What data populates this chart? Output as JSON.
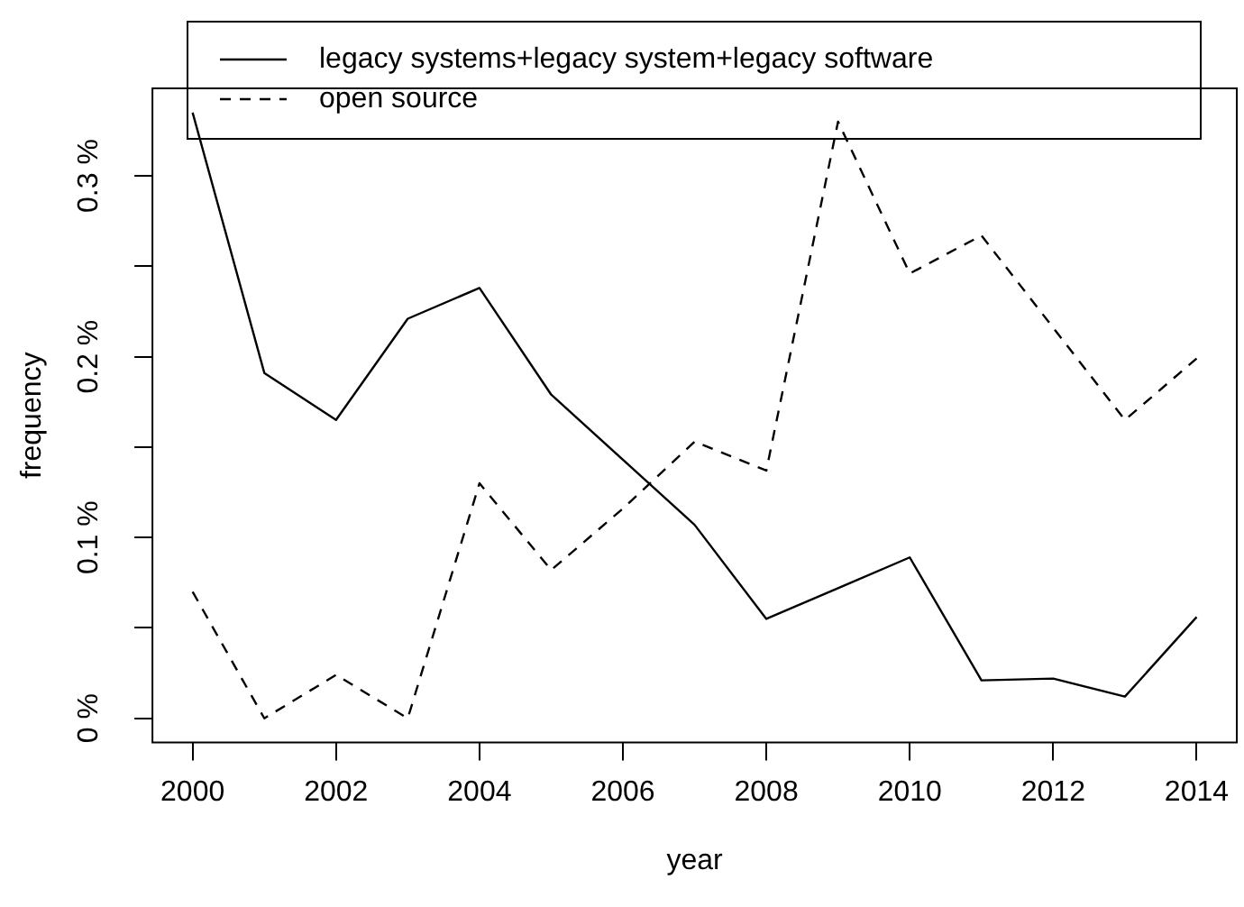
{
  "chart_data": {
    "type": "line",
    "xlabel": "year",
    "ylabel": "frequency",
    "x": [
      2000,
      2001,
      2002,
      2003,
      2004,
      2005,
      2006,
      2007,
      2008,
      2009,
      2010,
      2011,
      2012,
      2013,
      2014
    ],
    "series": [
      {
        "name": "legacy systems+legacy system+legacy software",
        "color": "#000000",
        "line_style": "solid",
        "values": [
          0.335,
          0.191,
          0.165,
          0.221,
          0.238,
          0.179,
          0.143,
          0.107,
          0.055,
          0.072,
          0.089,
          0.021,
          0.022,
          0.012,
          0.056
        ]
      },
      {
        "name": "open source",
        "color": "#000000",
        "line_style": "dashed",
        "values": [
          0.07,
          0,
          0.024,
          0,
          0.13,
          0.082,
          0.116,
          0.153,
          0.137,
          0.33,
          0.246,
          0.267,
          0.216,
          0.165,
          0.199
        ]
      }
    ],
    "xlim": [
      1999.44,
      2014.56
    ],
    "xticks": [
      2000,
      2002,
      2004,
      2006,
      2008,
      2010,
      2012,
      2014
    ],
    "ylim": [
      -0.0134,
      0.3484
    ],
    "yticks": [
      {
        "value": 0,
        "label": "0 %"
      },
      {
        "value": 0.05,
        "label": null
      },
      {
        "value": 0.1,
        "label": "0.1 %"
      },
      {
        "value": 0.15,
        "label": null
      },
      {
        "value": 0.2,
        "label": "0.2 %"
      },
      {
        "value": 0.25,
        "label": null
      },
      {
        "value": 0.3,
        "label": "0.3 %"
      }
    ],
    "legend": "top",
    "marker": "none"
  }
}
